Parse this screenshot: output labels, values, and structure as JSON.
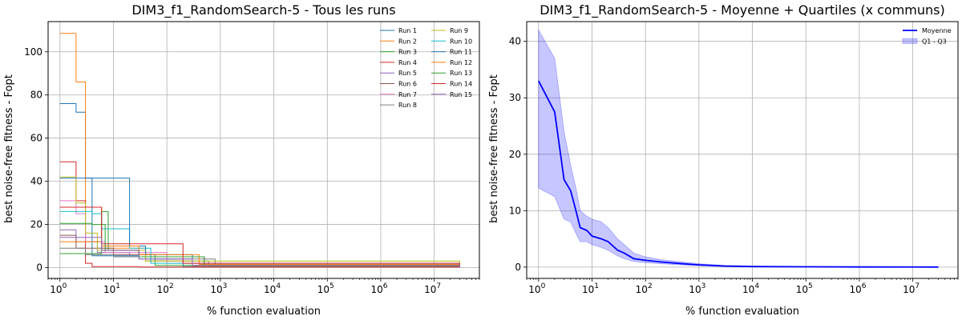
{
  "chart_data": [
    {
      "type": "line",
      "title": "DIM3_f1_RandomSearch-5 - Tous les runs",
      "xlabel": "% function evaluation",
      "ylabel": "best noise-free fitness - Fopt",
      "xscale": "log",
      "xlim": [
        0.6,
        70000000
      ],
      "ylim": [
        -5,
        114
      ],
      "yticks": [
        "0",
        "20",
        "40",
        "60",
        "80",
        "100"
      ],
      "ytick_values": [
        0,
        20,
        40,
        60,
        80,
        100
      ],
      "xtick_base": "10",
      "xtick_exponents": [
        "0",
        "1",
        "2",
        "3",
        "4",
        "5",
        "6",
        "7"
      ],
      "grid": true,
      "legend_position": "top-right",
      "legend_columns": 2,
      "step_style": "post",
      "series": [
        {
          "name": "Run 1",
          "color": "#1f77b4",
          "x": [
            1,
            2,
            3,
            4,
            30,
            200,
            30000000
          ],
          "y": [
            76,
            72,
            41.5,
            5.5,
            4,
            0.5,
            0.1
          ]
        },
        {
          "name": "Run 2",
          "color": "#ff7f0e",
          "x": [
            1,
            2,
            3,
            6,
            40,
            300,
            30000000
          ],
          "y": [
            108.5,
            86,
            28,
            9,
            3,
            0.8,
            0.1
          ]
        },
        {
          "name": "Run 3",
          "color": "#2ca02c",
          "x": [
            1,
            6,
            8,
            30,
            60,
            30000000
          ],
          "y": [
            6.5,
            26,
            8,
            6,
            1,
            0.1
          ]
        },
        {
          "name": "Run 4",
          "color": "#d62728",
          "x": [
            1,
            2,
            3,
            4,
            30,
            30000000
          ],
          "y": [
            49,
            31,
            2,
            0.5,
            0.3,
            0.1
          ]
        },
        {
          "name": "Run 5",
          "color": "#9467bd",
          "x": [
            1,
            2,
            5,
            20,
            500,
            30000000
          ],
          "y": [
            17.5,
            12,
            7,
            5,
            1.5,
            0.1
          ]
        },
        {
          "name": "Run 6",
          "color": "#8c564b",
          "x": [
            1,
            2,
            10,
            50,
            600,
            30000000
          ],
          "y": [
            15,
            9,
            6,
            3,
            1,
            0.1
          ]
        },
        {
          "name": "Run 7",
          "color": "#e377c2",
          "x": [
            1,
            2,
            3,
            7,
            100,
            30000000
          ],
          "y": [
            31,
            25,
            12,
            7,
            2,
            0.1
          ]
        },
        {
          "name": "Run 8",
          "color": "#7f7f7f",
          "x": [
            1,
            3,
            10,
            60,
            800,
            30000000
          ],
          "y": [
            9,
            6,
            5,
            4,
            1,
            0.1
          ]
        },
        {
          "name": "Run 9",
          "color": "#bcbd22",
          "x": [
            1,
            2,
            3,
            5,
            40,
            30000000
          ],
          "y": [
            42,
            30,
            16,
            8,
            3,
            0.1
          ]
        },
        {
          "name": "Run 10",
          "color": "#17becf",
          "x": [
            1,
            4,
            6,
            20,
            50,
            30000000
          ],
          "y": [
            26,
            25,
            18,
            9,
            2,
            0.1
          ]
        },
        {
          "name": "Run 11",
          "color": "#1f77b4",
          "x": [
            1,
            4,
            20,
            40,
            300,
            30000000
          ],
          "y": [
            41.5,
            41.5,
            10,
            6,
            1,
            0.1
          ]
        },
        {
          "name": "Run 12",
          "color": "#ff7f0e",
          "x": [
            1,
            4,
            6,
            30,
            400,
            30000000
          ],
          "y": [
            12,
            12,
            10,
            6,
            1.5,
            0.1
          ]
        },
        {
          "name": "Run 13",
          "color": "#2ca02c",
          "x": [
            1,
            4,
            7,
            30,
            500,
            30000000
          ],
          "y": [
            20.5,
            20,
            8,
            5,
            1,
            0.1
          ]
        },
        {
          "name": "Run 14",
          "color": "#d62728",
          "x": [
            1,
            4,
            6,
            30,
            200,
            30000000
          ],
          "y": [
            28,
            28,
            11,
            11,
            2,
            0.1
          ]
        },
        {
          "name": "Run 15",
          "color": "#9467bd",
          "x": [
            1,
            2,
            6,
            30,
            300,
            30000000
          ],
          "y": [
            14,
            14,
            8,
            4,
            1,
            0.1
          ]
        }
      ]
    },
    {
      "type": "line",
      "title": "DIM3_f1_RandomSearch-5 - Moyenne + Quartiles (x communs)",
      "xlabel": "% function evaluation",
      "ylabel": "best noise-free fitness - Fopt",
      "xscale": "log",
      "xlim": [
        0.6,
        70000000
      ],
      "ylim": [
        -2,
        43.5
      ],
      "yticks": [
        "0",
        "10",
        "20",
        "30",
        "40"
      ],
      "ytick_values": [
        0,
        10,
        20,
        30,
        40
      ],
      "xtick_base": "10",
      "xtick_exponents": [
        "0",
        "1",
        "2",
        "3",
        "4",
        "5",
        "6",
        "7"
      ],
      "grid": true,
      "legend_position": "top-right",
      "legend_columns": 1,
      "series": [
        {
          "name": "Moyenne",
          "color": "#0000ff",
          "x": [
            1,
            2,
            3,
            4,
            5,
            6,
            8,
            10,
            15,
            20,
            30,
            40,
            60,
            100,
            200,
            500,
            1000,
            3000,
            10000,
            100000,
            1000000,
            30000000
          ],
          "y": [
            33,
            27.5,
            15.5,
            13.5,
            10,
            7,
            6.5,
            5.5,
            5,
            4.5,
            3,
            2.5,
            1.5,
            1.2,
            0.9,
            0.6,
            0.4,
            0.2,
            0.1,
            0.05,
            0.02,
            0.01
          ]
        },
        {
          "name": "Q1 - Q3",
          "color": "#0000ff",
          "fill_opacity": 0.22,
          "x": [
            1,
            2,
            3,
            4,
            5,
            6,
            8,
            10,
            15,
            20,
            30,
            40,
            60,
            100,
            200,
            500,
            1000,
            3000,
            10000,
            100000,
            1000000,
            30000000
          ],
          "lower": [
            14,
            12.5,
            8.5,
            8,
            6,
            4.5,
            4.5,
            4,
            3.5,
            3,
            2,
            1.5,
            1,
            0.8,
            0.6,
            0.4,
            0.25,
            0.1,
            0.05,
            0.02,
            0.01,
            0
          ],
          "upper": [
            42,
            37,
            24,
            18,
            14,
            10,
            9,
            8.5,
            8,
            7,
            5,
            4,
            2.5,
            1.8,
            1.3,
            0.9,
            0.6,
            0.3,
            0.15,
            0.08,
            0.04,
            0.02
          ]
        }
      ]
    }
  ]
}
